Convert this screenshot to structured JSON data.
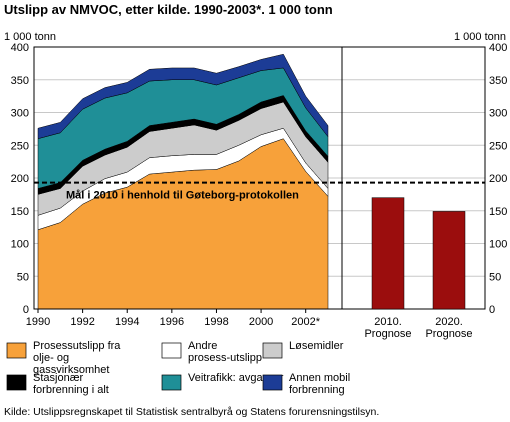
{
  "title": "Utslipp av NMVOC, etter kilde. 1990-2003*. 1 000 tonn",
  "source": "Kilde: Utslippsregnskapet til Statistisk sentralbyrå og Statens forurensningstilsyn.",
  "chart_data": {
    "type": "area",
    "stacked": true,
    "unit_left": "1 000 tonn",
    "unit_right": "1 000 tonn",
    "ylim": [
      0,
      400
    ],
    "yticks": [
      0,
      50,
      100,
      150,
      200,
      250,
      300,
      350,
      400
    ],
    "years": [
      1990,
      1991,
      1992,
      1993,
      1994,
      1995,
      1996,
      1997,
      1998,
      1999,
      2000,
      2001,
      2002,
      2003
    ],
    "xtick_labels": [
      "1990",
      "1992",
      "1994",
      "1996",
      "1998",
      "2000",
      "2002*"
    ],
    "series": [
      {
        "name": "Prosessutslipp fra olje- og gassvirksomhet",
        "color": "#f7a13a",
        "values": [
          121,
          132,
          160,
          177,
          186,
          206,
          209,
          212,
          213,
          226,
          248,
          260,
          210,
          172
        ]
      },
      {
        "name": "Andre prosess-utslipp",
        "color": "#ffffff",
        "values": [
          22,
          22,
          20,
          22,
          23,
          25,
          25,
          24,
          23,
          24,
          18,
          16,
          13,
          12
        ]
      },
      {
        "name": "Løsemidler",
        "color": "#cccccc",
        "values": [
          32,
          30,
          38,
          36,
          38,
          40,
          42,
          45,
          37,
          38,
          40,
          40,
          40,
          40
        ]
      },
      {
        "name": "Stasjonær forbrenning i alt",
        "color": "#000000",
        "values": [
          9,
          9,
          9,
          9,
          9,
          9,
          9,
          9,
          9,
          9,
          10,
          10,
          9,
          9
        ]
      },
      {
        "name": "Veitrafikk: avgasser",
        "color": "#1f8f97",
        "values": [
          76,
          76,
          78,
          78,
          74,
          68,
          65,
          60,
          60,
          56,
          48,
          42,
          35,
          30
        ]
      },
      {
        "name": "Annen mobil forbrenning",
        "color": "#1c3c96",
        "values": [
          16,
          16,
          16,
          16,
          16,
          18,
          18,
          18,
          18,
          17,
          17,
          21,
          18,
          17
        ]
      }
    ],
    "target_line": {
      "value": 193,
      "label": "Mål i 2010 i henhold til Gøteborg-protokollen"
    },
    "prognosis": {
      "categories": [
        "2010. Prognose",
        "2020. Prognose"
      ],
      "category_lines": [
        [
          "2010.",
          "Prognose"
        ],
        [
          "2020.",
          "Prognose"
        ]
      ],
      "values": [
        170,
        149
      ],
      "color": "#9b0d0d"
    },
    "grid": true,
    "legend_position": "bottom"
  }
}
